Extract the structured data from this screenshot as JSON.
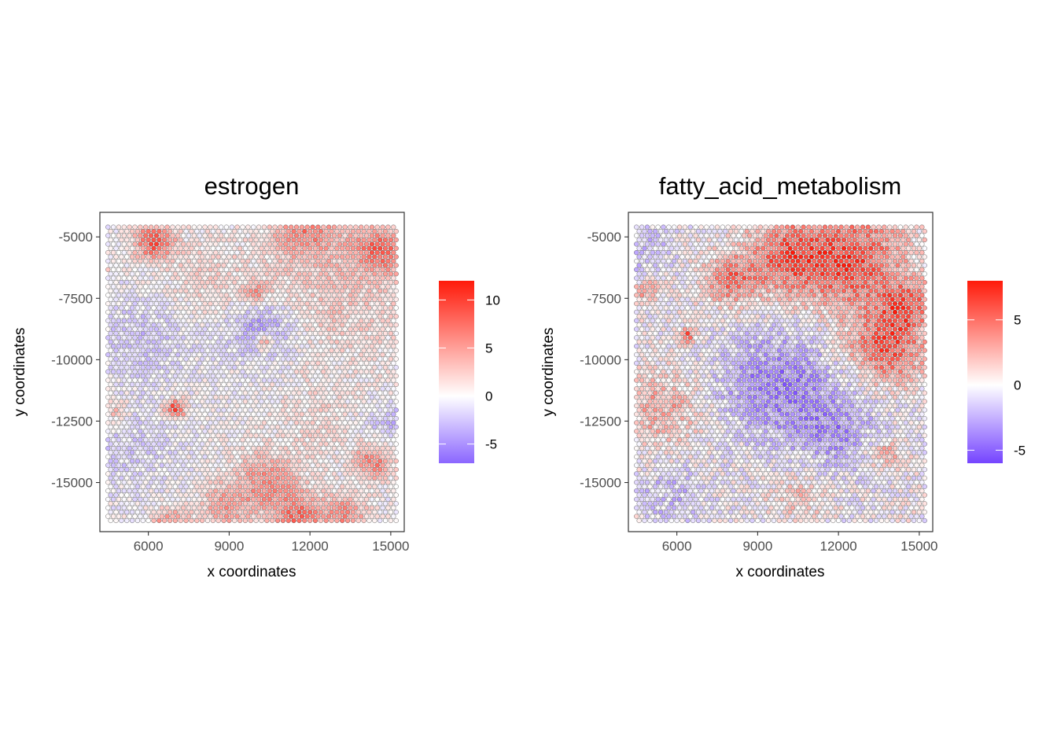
{
  "chart_data": [
    {
      "type": "scatter",
      "title": "estrogen",
      "xlabel": "x coordinates",
      "ylabel": "y coordinates",
      "xlim": [
        4200,
        15500
      ],
      "ylim": [
        -17000,
        -4000
      ],
      "x_ticks": [
        "6000",
        "9000",
        "12000",
        "15000"
      ],
      "y_ticks": [
        "-5000",
        "-7500",
        "-10000",
        "-12500",
        "-15000"
      ],
      "grid": false,
      "legend": {
        "position": "right",
        "min": -7,
        "max": 12,
        "ticks": [
          "10",
          "5",
          "0",
          "-5"
        ],
        "low_color": "#8b66ff",
        "mid_color": "#ffffff",
        "high_color": "#ff1a0a"
      },
      "spots": {
        "x_range": [
          4500,
          15200
        ],
        "y_range": [
          -16700,
          -4600
        ],
        "spacing": 200
      },
      "regions": [
        {
          "x": 6200,
          "y": -5200,
          "r": 700,
          "v": 9
        },
        {
          "x": 11800,
          "y": -4700,
          "r": 1200,
          "v": 6
        },
        {
          "x": 14600,
          "y": -5500,
          "r": 1000,
          "v": 7
        },
        {
          "x": 13000,
          "y": -7300,
          "r": 2800,
          "v": 2.5
        },
        {
          "x": 8000,
          "y": -6800,
          "r": 1800,
          "v": 2
        },
        {
          "x": 10200,
          "y": -8800,
          "r": 1300,
          "v": -5
        },
        {
          "x": 10300,
          "y": -9300,
          "r": 350,
          "v": 7
        },
        {
          "x": 10000,
          "y": -7300,
          "r": 500,
          "v": 5
        },
        {
          "x": 6000,
          "y": -9000,
          "r": 1800,
          "v": -2.5
        },
        {
          "x": 7000,
          "y": -12000,
          "r": 400,
          "v": 10
        },
        {
          "x": 4800,
          "y": -12100,
          "r": 500,
          "v": 4
        },
        {
          "x": 14300,
          "y": -14200,
          "r": 700,
          "v": 7
        },
        {
          "x": 10400,
          "y": -15000,
          "r": 1200,
          "v": 6
        },
        {
          "x": 8800,
          "y": -16000,
          "r": 900,
          "v": 5
        },
        {
          "x": 11600,
          "y": -16400,
          "r": 900,
          "v": 7
        },
        {
          "x": 13300,
          "y": -16300,
          "r": 800,
          "v": 6
        },
        {
          "x": 6800,
          "y": -16700,
          "r": 700,
          "v": 6
        },
        {
          "x": 5200,
          "y": -13500,
          "r": 1800,
          "v": -2
        },
        {
          "x": 14900,
          "y": -12500,
          "r": 800,
          "v": -3
        },
        {
          "x": 4300,
          "y": -6300,
          "r": 200,
          "v": 12
        },
        {
          "x": 12200,
          "y": -12500,
          "r": 1500,
          "v": 1.5
        }
      ]
    },
    {
      "type": "scatter",
      "title": "fatty_acid_metabolism",
      "xlabel": "x coordinates",
      "ylabel": "y coordinates",
      "xlim": [
        4200,
        15500
      ],
      "ylim": [
        -17000,
        -4000
      ],
      "x_ticks": [
        "6000",
        "9000",
        "12000",
        "15000"
      ],
      "y_ticks": [
        "-5000",
        "-7500",
        "-10000",
        "-12500",
        "-15000"
      ],
      "grid": false,
      "legend": {
        "position": "right",
        "min": -6,
        "max": 8,
        "ticks": [
          "5",
          "0",
          "-5"
        ],
        "low_color": "#7544ff",
        "mid_color": "#ffffff",
        "high_color": "#ff1a0a"
      },
      "spots": {
        "x_range": [
          4500,
          15200
        ],
        "y_range": [
          -16700,
          -4600
        ],
        "spacing": 200
      },
      "regions": [
        {
          "x": 12500,
          "y": -6000,
          "r": 2000,
          "v": 6
        },
        {
          "x": 10000,
          "y": -5800,
          "r": 1500,
          "v": 5
        },
        {
          "x": 8000,
          "y": -6800,
          "r": 1000,
          "v": 4.5
        },
        {
          "x": 13800,
          "y": -9500,
          "r": 1400,
          "v": 6
        },
        {
          "x": 14500,
          "y": -7800,
          "r": 900,
          "v": 5
        },
        {
          "x": 9700,
          "y": -11000,
          "r": 2200,
          "v": -4
        },
        {
          "x": 12000,
          "y": -13000,
          "r": 1600,
          "v": -3
        },
        {
          "x": 5500,
          "y": -12000,
          "r": 1500,
          "v": 3
        },
        {
          "x": 6400,
          "y": -9000,
          "r": 300,
          "v": 6
        },
        {
          "x": 4900,
          "y": -7200,
          "r": 400,
          "v": 4
        },
        {
          "x": 5800,
          "y": -15500,
          "r": 1200,
          "v": -2
        },
        {
          "x": 10500,
          "y": -15500,
          "r": 1000,
          "v": 2
        },
        {
          "x": 13700,
          "y": -13800,
          "r": 700,
          "v": 3
        },
        {
          "x": 4800,
          "y": -5500,
          "r": 1000,
          "v": -2
        },
        {
          "x": 12300,
          "y": -6200,
          "r": 150,
          "v": 8
        }
      ]
    }
  ]
}
